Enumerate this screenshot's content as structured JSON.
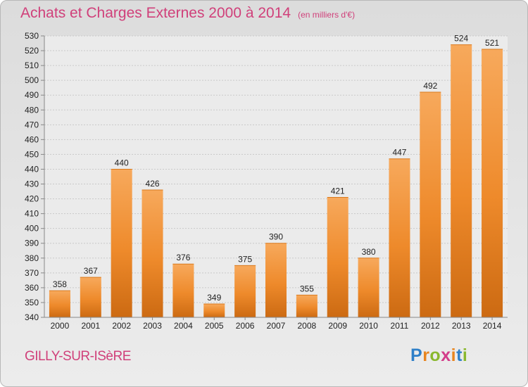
{
  "header": {
    "title": "Achats et Charges Externes 2000 à 2014",
    "unit": "(en milliers d'€)"
  },
  "footer": {
    "commune": "GILLY-SUR-ISèRE",
    "logo": {
      "letters": [
        "P",
        "r",
        "o",
        "x",
        "i",
        "t",
        "i"
      ],
      "colors": [
        "#2e7fc8",
        "#e8851f",
        "#8ab82e",
        "#d33c8a",
        "#e8851f",
        "#2e7fc8",
        "#8ab82e"
      ]
    }
  },
  "chart_data": {
    "type": "bar",
    "title": "Achats et Charges Externes 2000 à 2014",
    "subtitle": "(en milliers d'€)",
    "xlabel": "",
    "ylabel": "",
    "categories": [
      "2000",
      "2001",
      "2002",
      "2003",
      "2004",
      "2005",
      "2006",
      "2007",
      "2008",
      "2009",
      "2010",
      "2011",
      "2012",
      "2013",
      "2014"
    ],
    "values": [
      358,
      367,
      440,
      426,
      376,
      349,
      375,
      390,
      355,
      421,
      380,
      447,
      492,
      524,
      521
    ],
    "ylim": [
      340,
      530
    ],
    "ytick_step": 10,
    "grid": true,
    "bar_color": "#f08c2a",
    "data_labels": true
  }
}
